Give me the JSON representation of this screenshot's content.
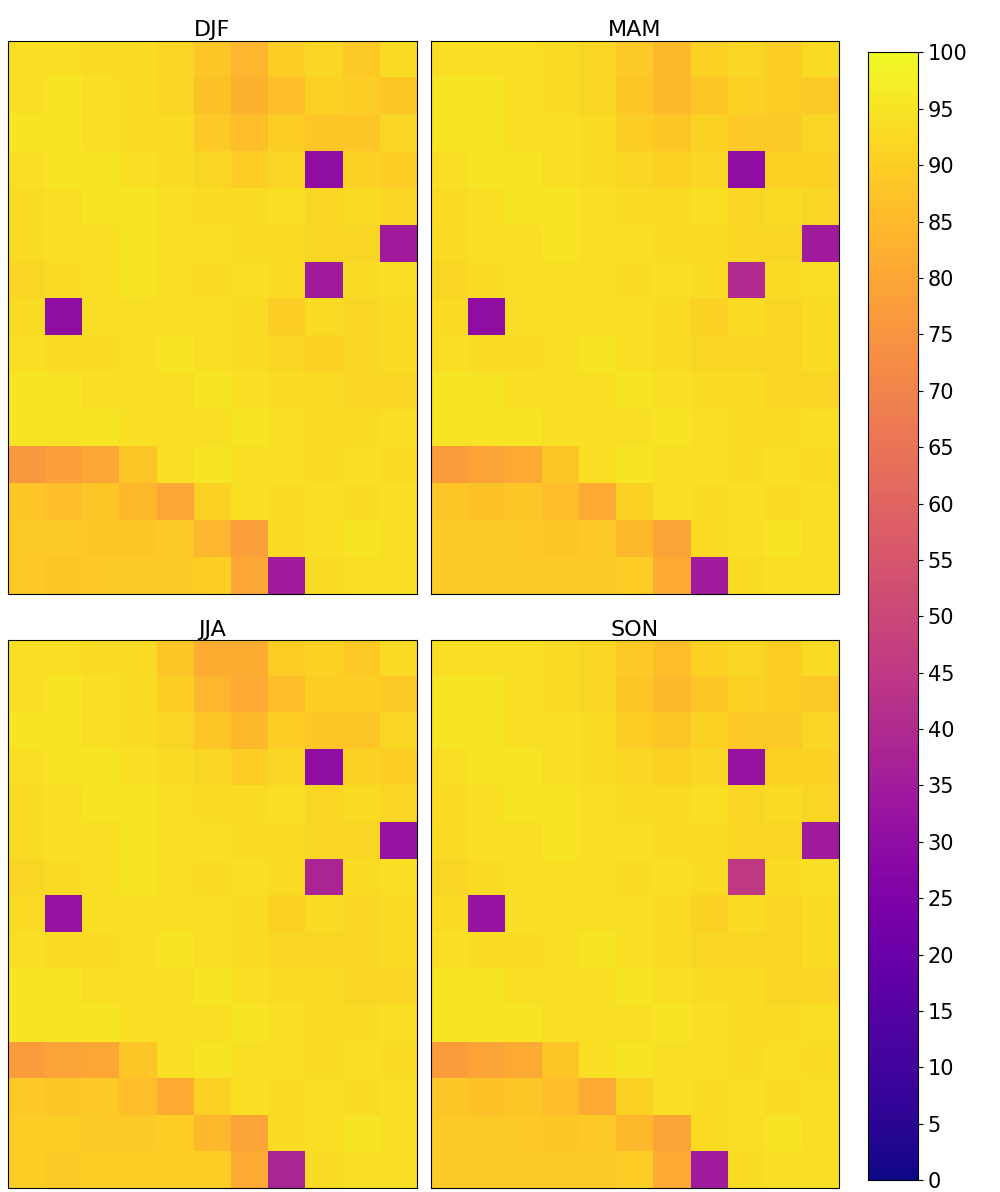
{
  "chart_data": [
    {
      "type": "heatmap",
      "title": "DJF",
      "color": "plasma",
      "tick_labels": false,
      "colorbar": {
        "range": [
          0,
          100
        ],
        "ticks": [
          0,
          5,
          10,
          15,
          20,
          25,
          30,
          35,
          40,
          45,
          50,
          55,
          60,
          65,
          70,
          75,
          80,
          85,
          90,
          95,
          100
        ]
      },
      "cells": [
        [
          94,
          94,
          93,
          93,
          92,
          88,
          84,
          90,
          92,
          89,
          93
        ],
        [
          94,
          95,
          94,
          93,
          92,
          87,
          83,
          86,
          91,
          90,
          88
        ],
        [
          95,
          95,
          94,
          93,
          93,
          89,
          86,
          90,
          88,
          88,
          92
        ],
        [
          94,
          95,
          95,
          94,
          93,
          92,
          90,
          92,
          30,
          91,
          90
        ],
        [
          93,
          94,
          95,
          95,
          94,
          93,
          93,
          94,
          92,
          93,
          92
        ],
        [
          93,
          94,
          94,
          95,
          94,
          94,
          93,
          93,
          92,
          92,
          35
        ],
        [
          92,
          93,
          94,
          95,
          94,
          93,
          94,
          93,
          35,
          93,
          94
        ],
        [
          93,
          30,
          94,
          94,
          94,
          94,
          93,
          90,
          93,
          92,
          93
        ],
        [
          94,
          93,
          93,
          94,
          95,
          94,
          93,
          92,
          91,
          92,
          93
        ],
        [
          95,
          95,
          94,
          94,
          94,
          95,
          94,
          93,
          93,
          92,
          92
        ],
        [
          95,
          95,
          95,
          94,
          94,
          94,
          95,
          94,
          93,
          93,
          94
        ],
        [
          76,
          78,
          80,
          88,
          94,
          95,
          94,
          94,
          93,
          94,
          93
        ],
        [
          88,
          86,
          88,
          85,
          80,
          91,
          94,
          93,
          94,
          93,
          94
        ],
        [
          89,
          89,
          88,
          88,
          89,
          84,
          78,
          93,
          94,
          95,
          94
        ],
        [
          89,
          88,
          89,
          89,
          89,
          90,
          80,
          35,
          93,
          94,
          94
        ]
      ]
    },
    {
      "type": "heatmap",
      "title": "MAM",
      "color": "plasma",
      "tick_labels": false,
      "colorbar": {
        "range": [
          0,
          100
        ],
        "ticks": [
          0,
          5,
          10,
          15,
          20,
          25,
          30,
          35,
          40,
          45,
          50,
          55,
          60,
          65,
          70,
          75,
          80,
          85,
          90,
          95,
          100
        ]
      },
      "cells": [
        [
          94,
          94,
          94,
          93,
          92,
          89,
          85,
          91,
          92,
          90,
          93
        ],
        [
          95,
          95,
          94,
          93,
          92,
          88,
          85,
          88,
          91,
          90,
          89
        ],
        [
          95,
          95,
          94,
          94,
          93,
          90,
          88,
          91,
          89,
          89,
          92
        ],
        [
          94,
          95,
          95,
          94,
          93,
          92,
          91,
          92,
          30,
          91,
          91
        ],
        [
          93,
          94,
          95,
          95,
          94,
          93,
          93,
          94,
          92,
          93,
          92
        ],
        [
          93,
          94,
          94,
          95,
          94,
          94,
          93,
          93,
          92,
          92,
          35
        ],
        [
          92,
          93,
          94,
          94,
          94,
          93,
          94,
          93,
          40,
          93,
          94
        ],
        [
          93,
          30,
          94,
          94,
          94,
          94,
          93,
          91,
          93,
          92,
          93
        ],
        [
          94,
          93,
          93,
          94,
          95,
          94,
          93,
          92,
          92,
          92,
          93
        ],
        [
          95,
          95,
          94,
          94,
          94,
          95,
          94,
          93,
          93,
          92,
          92
        ],
        [
          95,
          95,
          95,
          94,
          94,
          94,
          95,
          94,
          93,
          93,
          94
        ],
        [
          77,
          79,
          81,
          88,
          94,
          95,
          94,
          94,
          93,
          94,
          93
        ],
        [
          88,
          87,
          88,
          86,
          81,
          91,
          94,
          93,
          94,
          93,
          94
        ],
        [
          89,
          89,
          89,
          88,
          89,
          85,
          79,
          93,
          94,
          95,
          94
        ],
        [
          89,
          89,
          89,
          89,
          89,
          90,
          81,
          35,
          93,
          94,
          94
        ]
      ]
    },
    {
      "type": "heatmap",
      "title": "JJA",
      "color": "plasma",
      "tick_labels": false,
      "colorbar": {
        "range": [
          0,
          100
        ],
        "ticks": [
          0,
          5,
          10,
          15,
          20,
          25,
          30,
          35,
          40,
          45,
          50,
          55,
          60,
          65,
          70,
          75,
          80,
          85,
          90,
          95,
          100
        ]
      },
      "cells": [
        [
          94,
          94,
          93,
          93,
          88,
          82,
          82,
          90,
          91,
          89,
          93
        ],
        [
          94,
          95,
          94,
          93,
          90,
          84,
          81,
          86,
          90,
          90,
          89
        ],
        [
          95,
          95,
          94,
          93,
          92,
          88,
          85,
          90,
          88,
          88,
          92
        ],
        [
          94,
          95,
          95,
          94,
          93,
          92,
          90,
          92,
          30,
          91,
          90
        ],
        [
          93,
          94,
          95,
          95,
          94,
          93,
          93,
          94,
          92,
          93,
          92
        ],
        [
          93,
          94,
          94,
          95,
          94,
          94,
          93,
          93,
          92,
          92,
          32
        ],
        [
          92,
          93,
          94,
          95,
          94,
          93,
          94,
          93,
          38,
          93,
          94
        ],
        [
          93,
          32,
          94,
          94,
          94,
          94,
          93,
          91,
          93,
          92,
          93
        ],
        [
          94,
          93,
          93,
          94,
          95,
          94,
          93,
          92,
          92,
          92,
          93
        ],
        [
          95,
          95,
          94,
          94,
          94,
          95,
          94,
          93,
          93,
          92,
          92
        ],
        [
          95,
          95,
          95,
          94,
          94,
          94,
          95,
          94,
          93,
          93,
          94
        ],
        [
          77,
          79,
          80,
          88,
          94,
          95,
          94,
          94,
          93,
          94,
          93
        ],
        [
          89,
          88,
          89,
          86,
          81,
          91,
          94,
          93,
          94,
          93,
          94
        ],
        [
          90,
          90,
          89,
          89,
          90,
          85,
          79,
          93,
          94,
          95,
          94
        ],
        [
          90,
          89,
          90,
          90,
          90,
          90,
          81,
          38,
          93,
          94,
          94
        ]
      ]
    },
    {
      "type": "heatmap",
      "title": "SON",
      "color": "plasma",
      "tick_labels": false,
      "colorbar": {
        "range": [
          0,
          100
        ],
        "ticks": [
          0,
          5,
          10,
          15,
          20,
          25,
          30,
          35,
          40,
          45,
          50,
          55,
          60,
          65,
          70,
          75,
          80,
          85,
          90,
          95,
          100
        ]
      },
      "cells": [
        [
          94,
          94,
          94,
          93,
          92,
          89,
          86,
          91,
          92,
          90,
          93
        ],
        [
          95,
          95,
          94,
          93,
          92,
          88,
          85,
          88,
          91,
          90,
          89
        ],
        [
          95,
          95,
          94,
          94,
          93,
          90,
          88,
          91,
          89,
          89,
          92
        ],
        [
          94,
          95,
          95,
          94,
          93,
          92,
          91,
          92,
          32,
          91,
          91
        ],
        [
          93,
          94,
          95,
          95,
          94,
          93,
          93,
          94,
          92,
          93,
          92
        ],
        [
          93,
          94,
          94,
          95,
          94,
          94,
          93,
          93,
          92,
          92,
          35
        ],
        [
          92,
          93,
          94,
          94,
          94,
          93,
          94,
          93,
          45,
          93,
          94
        ],
        [
          93,
          32,
          94,
          94,
          94,
          94,
          93,
          91,
          93,
          92,
          93
        ],
        [
          94,
          93,
          93,
          94,
          95,
          94,
          93,
          92,
          92,
          92,
          93
        ],
        [
          95,
          95,
          94,
          94,
          94,
          95,
          94,
          93,
          93,
          92,
          92
        ],
        [
          95,
          95,
          95,
          94,
          94,
          94,
          95,
          94,
          93,
          93,
          94
        ],
        [
          77,
          79,
          81,
          88,
          94,
          95,
          94,
          94,
          93,
          94,
          93
        ],
        [
          88,
          87,
          88,
          86,
          81,
          91,
          94,
          93,
          94,
          93,
          94
        ],
        [
          89,
          89,
          89,
          88,
          89,
          85,
          79,
          93,
          94,
          95,
          94
        ],
        [
          89,
          89,
          89,
          89,
          89,
          90,
          81,
          35,
          93,
          94,
          94
        ]
      ]
    }
  ]
}
